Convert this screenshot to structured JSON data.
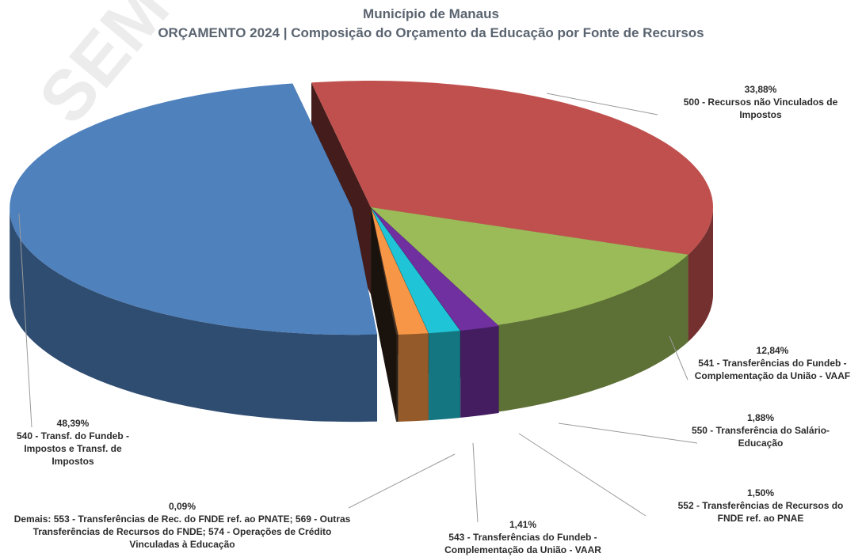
{
  "chart_data": {
    "type": "pie",
    "title": "Município de Manaus",
    "subtitle": "ORÇAMENTO 2024 | Composição do Orçamento da Educação por Fonte de Recursos",
    "watermark": "SEM",
    "categories": [
      "500 - Recursos não Vinculados de Impostos",
      "541 - Transferências do Fundeb - Complementação da União - VAAF",
      "550 - Transferência do Salário-Educação",
      "552 - Transferências de Recursos do FNDE ref. ao PNAE",
      "543 - Transferências do Fundeb - Complementação da União - VAAR",
      "Demais: 553 - Transferências de Rec. do FNDE ref. ao PNATE; 569 - Outras Transferências de Recursos do FNDE; 574 - Operações de Crédito Vinculadas à Educação",
      "540 - Transf. do Fundeb - Impostos e Transf. de Impostos"
    ],
    "values": [
      33.88,
      12.84,
      1.88,
      1.5,
      1.41,
      0.09,
      48.39
    ],
    "value_labels": [
      "33,88%",
      "12,84%",
      "1,88%",
      "1,50%",
      "1,41%",
      "0,09%",
      "48,39%"
    ],
    "colors": [
      "#c0504d",
      "#9bbb59",
      "#7030a0",
      "#1fc4d6",
      "#f79646",
      "#4a3526",
      "#4f81bd"
    ]
  }
}
